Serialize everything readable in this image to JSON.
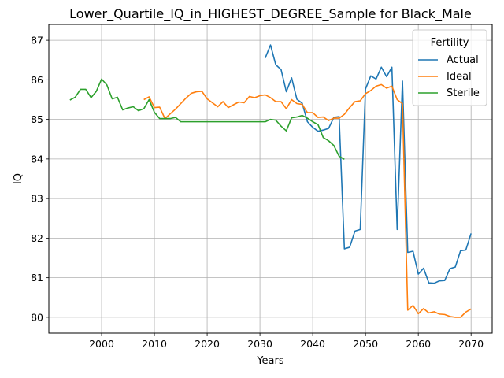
{
  "chart_data": {
    "type": "line",
    "title": "Lower_Quartile_IQ_in_HIGHEST_DEGREE_Sample for Black_Male",
    "xlabel": "Years",
    "ylabel": "IQ",
    "xlim": [
      1990,
      2074
    ],
    "ylim": [
      79.6,
      87.4
    ],
    "xticks": [
      2000,
      2010,
      2020,
      2030,
      2040,
      2050,
      2060,
      2070
    ],
    "yticks": [
      80,
      81,
      82,
      83,
      84,
      85,
      86,
      87
    ],
    "grid": true,
    "legend": {
      "title": "Fertility",
      "position": "top-right"
    },
    "series": [
      {
        "name": "Actual",
        "color": "#1f77b4",
        "x": [
          2031,
          2032,
          2033,
          2034,
          2035,
          2036,
          2037,
          2038,
          2039,
          2040,
          2041,
          2042,
          2043,
          2044,
          2045,
          2046,
          2047,
          2048,
          2049,
          2050,
          2051,
          2052,
          2053,
          2054,
          2055,
          2056,
          2057,
          2058,
          2059,
          2060,
          2061,
          2062,
          2063,
          2064,
          2065,
          2066,
          2067,
          2068,
          2069,
          2070
        ],
        "y": [
          86.55,
          86.88,
          86.38,
          86.26,
          85.7,
          86.05,
          85.51,
          85.41,
          84.94,
          84.8,
          84.7,
          84.73,
          84.77,
          85.05,
          85.07,
          81.73,
          81.77,
          82.18,
          82.22,
          85.77,
          86.1,
          86.02,
          86.32,
          86.08,
          86.32,
          82.22,
          85.97,
          81.64,
          81.67,
          81.09,
          81.24,
          80.87,
          80.86,
          80.92,
          80.93,
          81.23,
          81.27,
          81.68,
          81.7,
          82.12
        ]
      },
      {
        "name": "Ideal",
        "color": "#ff7f0e",
        "x": [
          2008,
          2009,
          2010,
          2011,
          2012,
          2013,
          2014,
          2015,
          2016,
          2017,
          2018,
          2019,
          2020,
          2021,
          2022,
          2023,
          2024,
          2025,
          2026,
          2027,
          2028,
          2029,
          2030,
          2031,
          2032,
          2033,
          2034,
          2035,
          2036,
          2037,
          2038,
          2039,
          2040,
          2041,
          2042,
          2043,
          2044,
          2045,
          2046,
          2047,
          2048,
          2049,
          2050,
          2051,
          2052,
          2053,
          2054,
          2055,
          2056,
          2057,
          2058,
          2059,
          2060,
          2061,
          2062,
          2063,
          2064,
          2065,
          2066,
          2067,
          2068,
          2069,
          2070
        ],
        "y": [
          85.5,
          85.57,
          85.3,
          85.31,
          85.02,
          85.14,
          85.26,
          85.4,
          85.54,
          85.66,
          85.7,
          85.71,
          85.52,
          85.42,
          85.32,
          85.45,
          85.3,
          85.37,
          85.44,
          85.42,
          85.58,
          85.55,
          85.6,
          85.62,
          85.55,
          85.45,
          85.45,
          85.27,
          85.5,
          85.4,
          85.38,
          85.17,
          85.17,
          85.05,
          85.06,
          84.97,
          85.03,
          85.03,
          85.13,
          85.3,
          85.45,
          85.47,
          85.65,
          85.73,
          85.84,
          85.88,
          85.79,
          85.84,
          85.5,
          85.4,
          80.18,
          80.3,
          80.09,
          80.22,
          80.11,
          80.14,
          80.08,
          80.07,
          80.02,
          80,
          80,
          80.13,
          80.21
        ]
      },
      {
        "name": "Sterile",
        "color": "#2ca02c",
        "x": [
          1994,
          1995,
          1996,
          1997,
          1998,
          1999,
          2000,
          2001,
          2002,
          2003,
          2004,
          2005,
          2006,
          2007,
          2008,
          2009,
          2010,
          2011,
          2012,
          2013,
          2014,
          2015,
          2016,
          2017,
          2018,
          2019,
          2020,
          2021,
          2022,
          2023,
          2024,
          2025,
          2026,
          2027,
          2028,
          2029,
          2030,
          2031,
          2032,
          2033,
          2034,
          2035,
          2036,
          2037,
          2038,
          2039,
          2040,
          2041,
          2042,
          2043,
          2044,
          2045,
          2046
        ],
        "y": [
          85.49,
          85.56,
          85.76,
          85.76,
          85.55,
          85.71,
          86.02,
          85.87,
          85.52,
          85.56,
          85.24,
          85.29,
          85.32,
          85.22,
          85.27,
          85.5,
          85.18,
          85.02,
          85.02,
          85.02,
          85.05,
          84.94,
          84.94,
          84.94,
          84.94,
          84.94,
          84.94,
          84.94,
          84.94,
          84.94,
          84.94,
          84.94,
          84.94,
          84.94,
          84.94,
          84.94,
          84.94,
          84.94,
          85,
          84.98,
          84.83,
          84.71,
          85.04,
          85.06,
          85.1,
          85.03,
          84.94,
          84.87,
          84.54,
          84.46,
          84.34,
          84.07,
          83.99
        ]
      }
    ]
  }
}
